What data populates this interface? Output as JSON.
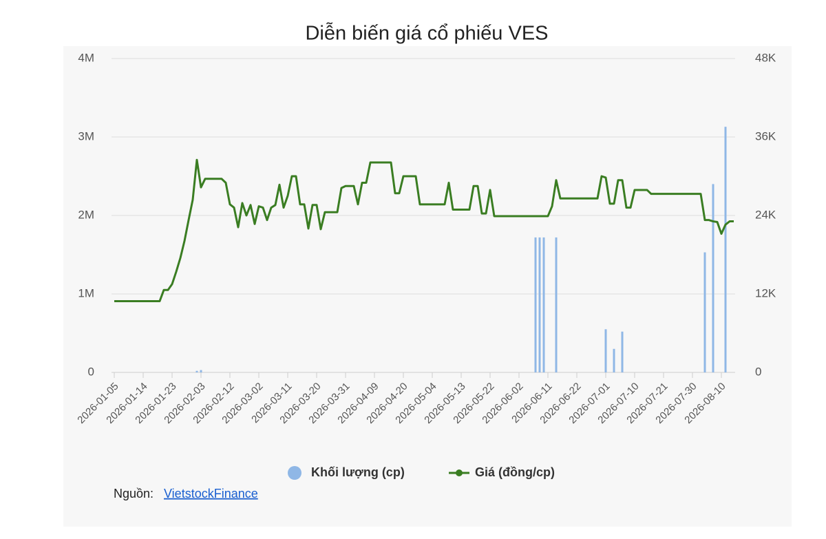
{
  "chart_data": {
    "type": "bar-line",
    "title": "Diễn biến giá cổ phiếu VES",
    "categories": [
      "2026-01-05",
      null,
      null,
      null,
      null,
      null,
      null,
      "2026-01-14",
      null,
      null,
      null,
      null,
      null,
      null,
      "2026-01-23",
      null,
      null,
      null,
      null,
      null,
      null,
      "2026-02-03",
      null,
      null,
      null,
      null,
      null,
      null,
      "2026-02-12",
      null,
      null,
      null,
      null,
      null,
      null,
      "2026-03-02",
      null,
      null,
      null,
      null,
      null,
      null,
      "2026-03-11",
      null,
      null,
      null,
      null,
      null,
      null,
      "2026-03-20",
      null,
      null,
      null,
      null,
      null,
      null,
      "2026-03-31",
      null,
      null,
      null,
      null,
      null,
      null,
      "2026-04-09",
      null,
      null,
      null,
      null,
      null,
      null,
      "2026-04-20",
      null,
      null,
      null,
      null,
      null,
      null,
      "2026-05-04",
      null,
      null,
      null,
      null,
      null,
      null,
      "2026-05-13",
      null,
      null,
      null,
      null,
      null,
      null,
      "2026-05-22",
      null,
      null,
      null,
      null,
      null,
      null,
      "2026-06-02",
      null,
      null,
      null,
      null,
      null,
      null,
      "2026-06-11",
      null,
      null,
      null,
      null,
      null,
      null,
      "2026-06-22",
      null,
      null,
      null,
      null,
      null,
      null,
      "2026-07-01",
      null,
      null,
      null,
      null,
      null,
      null,
      "2026-07-10",
      null,
      null,
      null,
      null,
      null,
      null,
      "2026-07-21",
      null,
      null,
      null,
      null,
      null,
      null,
      "2026-07-30",
      null,
      null,
      null,
      null,
      null,
      null,
      "2026-08-10",
      null,
      null,
      null
    ],
    "series": [
      {
        "name": "Khối lượng (cp)",
        "color": "#8fb7e6",
        "axis": "y",
        "values": [
          0,
          0,
          0,
          0,
          0,
          0,
          0,
          0,
          0,
          0,
          0,
          0,
          0,
          0,
          0,
          0,
          0,
          0,
          0,
          0,
          20000,
          30000,
          0,
          0,
          0,
          0,
          0,
          0,
          0,
          0,
          0,
          0,
          0,
          0,
          0,
          0,
          0,
          0,
          0,
          0,
          0,
          0,
          0,
          0,
          0,
          0,
          0,
          0,
          0,
          0,
          0,
          0,
          0,
          0,
          0,
          0,
          0,
          0,
          0,
          0,
          0,
          0,
          0,
          0,
          0,
          0,
          0,
          0,
          0,
          0,
          0,
          0,
          0,
          0,
          0,
          0,
          0,
          0,
          0,
          0,
          0,
          0,
          0,
          0,
          0,
          0,
          0,
          0,
          0,
          0,
          0,
          0,
          0,
          0,
          0,
          0,
          0,
          0,
          0,
          0,
          0,
          0,
          1720000,
          1720000,
          1720000,
          0,
          0,
          1720000,
          0,
          0,
          0,
          0,
          0,
          0,
          0,
          0,
          0,
          0,
          0,
          550000,
          0,
          300000,
          0,
          520000,
          0,
          0,
          0,
          0,
          0,
          0,
          0,
          0,
          0,
          0,
          0,
          0,
          0,
          0,
          0,
          0,
          0,
          0,
          0,
          1530000,
          0,
          2400000,
          0,
          0,
          3130000,
          0,
          0
        ]
      },
      {
        "name": "Giá (đồng/cp)",
        "color": "#3a7d22",
        "axis": "y2",
        "values": [
          10900,
          10900,
          10900,
          10900,
          10900,
          10900,
          10900,
          10900,
          10900,
          10900,
          10900,
          10900,
          12600,
          12600,
          13500,
          15400,
          17500,
          20100,
          23300,
          26400,
          32500,
          28300,
          29600,
          29600,
          29600,
          29600,
          29600,
          29000,
          25700,
          25200,
          22200,
          25900,
          24000,
          25600,
          22700,
          25400,
          25200,
          23300,
          25200,
          25600,
          28700,
          25200,
          27000,
          30000,
          30000,
          25700,
          25700,
          22000,
          25600,
          25600,
          21900,
          24500,
          24500,
          24500,
          24500,
          28200,
          28500,
          28500,
          28500,
          25700,
          29000,
          29000,
          32100,
          32100,
          32100,
          32100,
          32100,
          32100,
          27400,
          27400,
          30000,
          30000,
          30000,
          30000,
          25700,
          25700,
          25700,
          25700,
          25700,
          25700,
          25700,
          29000,
          24900,
          24900,
          24900,
          24900,
          24900,
          28500,
          28500,
          24300,
          24300,
          27900,
          23900,
          23900,
          23900,
          23900,
          23900,
          23900,
          23900,
          23900,
          23900,
          23900,
          23900,
          23900,
          23900,
          23900,
          25400,
          29400,
          26600,
          26600,
          26600,
          26600,
          26600,
          26600,
          26600,
          26600,
          26600,
          26600,
          30000,
          29800,
          25800,
          25800,
          29400,
          29400,
          25200,
          25200,
          27900,
          27900,
          27900,
          27900,
          27300,
          27300,
          27300,
          27300,
          27300,
          27300,
          27300,
          27300,
          27300,
          27300,
          27300,
          27300,
          27300,
          23300,
          23300,
          23100,
          23000,
          21200,
          22600,
          23100,
          23100
        ]
      }
    ],
    "ylim": [
      0,
      4000000
    ],
    "yticks": [
      0,
      {
        "value": 1000000,
        "label": "1M"
      },
      {
        "value": 2000000,
        "label": "2M"
      },
      {
        "value": 3000000,
        "label": "3M"
      },
      {
        "value": 4000000,
        "label": "4M"
      }
    ],
    "y2lim": [
      0,
      48000
    ],
    "y2ticks": [
      0,
      {
        "value": 12000,
        "label": "12K"
      },
      {
        "value": 24000,
        "label": "24K"
      },
      {
        "value": 36000,
        "label": "36K"
      },
      {
        "value": 48000,
        "label": "48K"
      }
    ],
    "grid": true,
    "legend": "bottom"
  },
  "source": {
    "label": "Nguồn:",
    "link": "VietstockFinance"
  }
}
